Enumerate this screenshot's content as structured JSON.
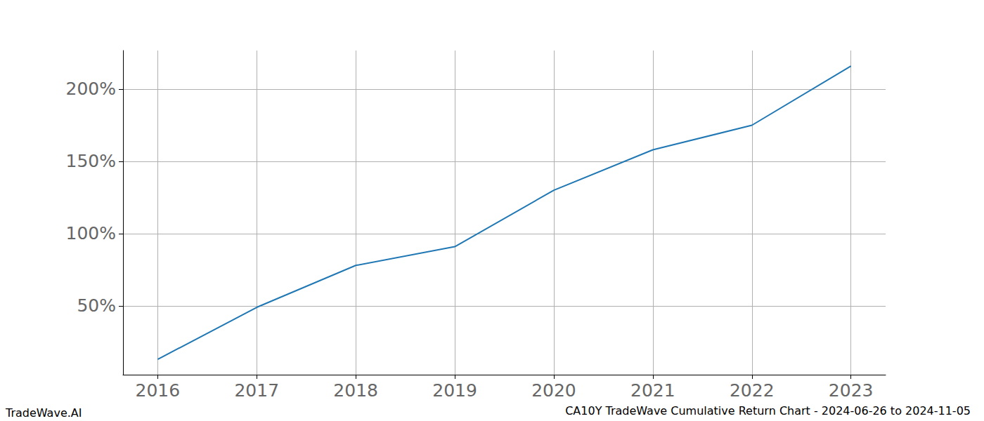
{
  "chart_data": {
    "type": "line",
    "title": "CA10Y TradeWave Cumulative Return Chart - 2024-06-26 to 2024-11-05",
    "annotations": [
      "TradeWave.AI"
    ],
    "x": [
      2016,
      2017,
      2018,
      2019,
      2020,
      2021,
      2022,
      2023
    ],
    "values": [
      13,
      49,
      78,
      91,
      130,
      158,
      175,
      216
    ],
    "color": "#1f77b4",
    "xlim": [
      2015.65,
      2023.35
    ],
    "xticks": [
      2016,
      2017,
      2018,
      2019,
      2020,
      2021,
      2022,
      2023
    ],
    "ylim": [
      2.4,
      226.7
    ],
    "yticks": [
      {
        "value": 50,
        "label": "50%"
      },
      {
        "value": 100,
        "label": "100%"
      },
      {
        "value": 150,
        "label": "150%"
      },
      {
        "value": 200,
        "label": "200%"
      }
    ],
    "grid": true
  }
}
